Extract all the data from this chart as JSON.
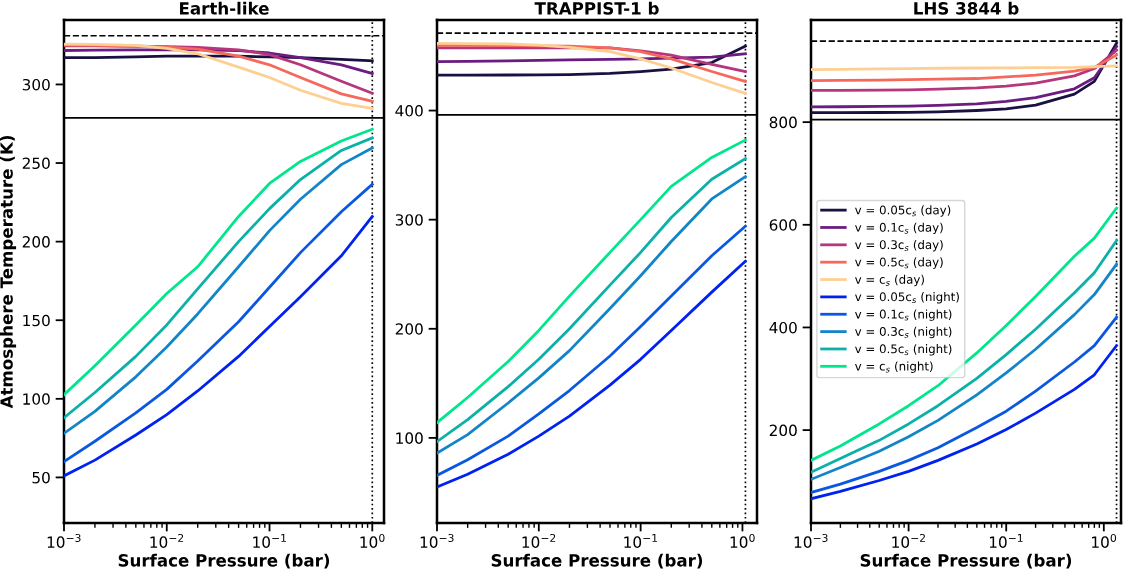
{
  "chart_data": [
    {
      "type": "line",
      "title": "Earth-like",
      "xlabel": "Surface Pressure (bar)",
      "ylabel": "Atmosphere Temperature (K)",
      "log": "x",
      "grid": false,
      "legend": false,
      "xlim": [
        0.001,
        1.3
      ],
      "xticks": [
        {
          "value": 0.001,
          "label": "10$^{−3}$"
        },
        {
          "value": 0.01,
          "label": "10$^{−2}$"
        },
        {
          "value": 0.1,
          "label": "10$^{−1}$"
        },
        {
          "value": 1,
          "label": "10$^{0}$"
        }
      ],
      "ylim": [
        21,
        341
      ],
      "yticks": [
        50,
        100,
        150,
        200,
        250,
        300
      ],
      "x": [
        0.001,
        0.002,
        0.005,
        0.01,
        0.02,
        0.05,
        0.1,
        0.2,
        0.5,
        1
      ],
      "ref_lines": [
        {
          "axis": "y",
          "value": 278.7,
          "color": "#000000",
          "line_style": "solid"
        },
        {
          "axis": "y",
          "value": 331,
          "color": "#000000",
          "line_style": "dashed"
        },
        {
          "axis": "x",
          "value": 1,
          "color": "#000000",
          "line_style": "dotted"
        }
      ],
      "series": [
        {
          "color": "#1a1042",
          "values": [
            317,
            317,
            317.5,
            318,
            318,
            318,
            317.5,
            317,
            316,
            315
          ]
        },
        {
          "color": "#6a1c81",
          "values": [
            321.6,
            321.8,
            322,
            322,
            322,
            321.5,
            320,
            317,
            312.5,
            307
          ]
        },
        {
          "color": "#b5367a",
          "values": [
            324.6,
            324.5,
            324.3,
            324,
            323.5,
            322,
            319,
            312.5,
            302,
            294.4
          ]
        },
        {
          "color": "#f4695c",
          "values": [
            325,
            324.8,
            324.3,
            323.7,
            322.5,
            318,
            312.5,
            304.4,
            294,
            289.3
          ]
        },
        {
          "color": "#fecf92",
          "values": [
            325.7,
            325.5,
            324.8,
            323,
            319.5,
            311,
            304.4,
            296.3,
            288,
            284.7
          ]
        },
        {
          "color": "#0022f0",
          "values": [
            51,
            61,
            77,
            90,
            105,
            127,
            146,
            165,
            191,
            216
          ]
        },
        {
          "color": "#0a58e0",
          "values": [
            60,
            73,
            91,
            106,
            124,
            149,
            171,
            193,
            219,
            236.5
          ]
        },
        {
          "color": "#1285c8",
          "values": [
            78,
            92,
            114,
            133,
            154,
            184,
            207,
            227,
            249,
            259.6
          ]
        },
        {
          "color": "#0bb1a8",
          "values": [
            88,
            104,
            127,
            147,
            170,
            200,
            221,
            239.5,
            258,
            266
          ]
        },
        {
          "color": "#00e68c",
          "values": [
            102.6,
            121,
            147,
            167,
            184,
            216,
            237,
            251,
            264,
            271.5
          ]
        }
      ]
    },
    {
      "type": "line",
      "title": "TRAPPIST-1 b",
      "xlabel": "Surface Pressure (bar)",
      "log": "x",
      "grid": false,
      "legend": false,
      "xlim": [
        0.001,
        1.39
      ],
      "xticks": [
        {
          "value": 0.001,
          "label": "10$^{−3}$"
        },
        {
          "value": 0.01,
          "label": "10$^{−2}$"
        },
        {
          "value": 0.1,
          "label": "10$^{−1}$"
        },
        {
          "value": 1,
          "label": "10$^{0}$"
        }
      ],
      "ylim": [
        22,
        483
      ],
      "yticks": [
        100,
        200,
        300,
        400
      ],
      "x": [
        0.001,
        0.002,
        0.005,
        0.01,
        0.02,
        0.05,
        0.1,
        0.2,
        0.5,
        1.07
      ],
      "ref_lines": [
        {
          "axis": "y",
          "value": 396,
          "color": "#000000",
          "line_style": "solid"
        },
        {
          "axis": "y",
          "value": 471,
          "color": "#000000",
          "line_style": "dashed"
        },
        {
          "axis": "x",
          "value": 1.07,
          "color": "#000000",
          "line_style": "dotted"
        }
      ],
      "series": [
        {
          "color": "#1a1042",
          "values": [
            432.4,
            432.5,
            432.6,
            432.8,
            433,
            434,
            435.7,
            438,
            444,
            459
          ]
        },
        {
          "color": "#6a1c81",
          "values": [
            444.8,
            445,
            445.5,
            446,
            446.5,
            447,
            447.4,
            448,
            449,
            452
          ]
        },
        {
          "color": "#b5367a",
          "values": [
            457.5,
            457.5,
            457.5,
            457.5,
            457.5,
            457.5,
            454.8,
            450.8,
            442.4,
            435.8
          ]
        },
        {
          "color": "#f4695c",
          "values": [
            459.8,
            459.7,
            459.5,
            459.3,
            459,
            457.5,
            454,
            447.4,
            435.8,
            426.7
          ]
        },
        {
          "color": "#fecf92",
          "values": [
            461.5,
            461.3,
            461,
            460,
            458,
            454,
            447.4,
            439,
            425.7,
            415.7
          ]
        },
        {
          "color": "#0022f0",
          "values": [
            55,
            66.6,
            85,
            101.6,
            120,
            148.4,
            172,
            198.5,
            233.6,
            262
          ]
        },
        {
          "color": "#0a58e0",
          "values": [
            65.6,
            80,
            101.6,
            122,
            143.4,
            175,
            202,
            230,
            267,
            294
          ]
        },
        {
          "color": "#1285c8",
          "values": [
            86,
            103,
            132,
            155,
            180,
            218.6,
            248.6,
            280,
            319,
            339.5
          ]
        },
        {
          "color": "#0bb1a8",
          "values": [
            96.6,
            116.7,
            147,
            172,
            200,
            240,
            270,
            302,
            337,
            356
          ]
        },
        {
          "color": "#00e68c",
          "values": [
            114,
            137,
            170,
            198.5,
            230,
            270,
            300,
            330.5,
            357,
            373
          ]
        }
      ]
    },
    {
      "type": "line",
      "title": "LHS 3844 b",
      "xlabel": "Surface Pressure (bar)",
      "log": "x",
      "grid": false,
      "legend": "center left",
      "xlim": [
        0.001,
        1.5
      ],
      "xticks": [
        {
          "value": 0.001,
          "label": "10$^{−3}$"
        },
        {
          "value": 0.01,
          "label": "10$^{−2}$"
        },
        {
          "value": 0.1,
          "label": "10$^{−1}$"
        },
        {
          "value": 1,
          "label": "10$^{0}$"
        }
      ],
      "ylim": [
        19,
        999
      ],
      "yticks": [
        200,
        400,
        600,
        800
      ],
      "x": [
        0.001,
        0.002,
        0.005,
        0.01,
        0.02,
        0.05,
        0.1,
        0.2,
        0.5,
        0.8,
        1.35
      ],
      "ref_lines": [
        {
          "axis": "y",
          "value": 805,
          "color": "#000000",
          "line_style": "solid"
        },
        {
          "axis": "y",
          "value": 958,
          "color": "#000000",
          "line_style": "dashed"
        },
        {
          "axis": "x",
          "value": 1.35,
          "color": "#000000",
          "line_style": "dotted"
        }
      ],
      "series": [
        {
          "name": "v = 0.05c$_{s}$ (day)",
          "color": "#1a1042",
          "values": [
            818.5,
            818.6,
            818.8,
            819,
            820,
            822.7,
            826,
            833,
            854.7,
            879.5,
            954
          ]
        },
        {
          "name": "v = 0.1c$_{s}$ (day)",
          "color": "#6a1c81",
          "values": [
            829.8,
            830,
            830.5,
            831,
            832.5,
            835.5,
            840.5,
            847.6,
            865,
            886.6,
            947
          ]
        },
        {
          "name": "v = 0.3c$_{s}$ (day)",
          "color": "#b5367a",
          "values": [
            861.8,
            862,
            862.5,
            863,
            864.5,
            866.8,
            870,
            876,
            890.2,
            904.4,
            940
          ]
        },
        {
          "name": "v = 0.5c$_{s}$ (day)",
          "color": "#f4695c",
          "values": [
            881,
            881.5,
            882,
            883,
            884,
            885,
            888,
            891.6,
            899.4,
            906.5,
            930.7
          ]
        },
        {
          "name": "v = c$_{s}$ (day)",
          "color": "#fecf92",
          "values": [
            902.3,
            903,
            903.8,
            904.4,
            905,
            905.5,
            905.8,
            906,
            906.5,
            908,
            909.4
          ]
        },
        {
          "name": "v = 0.05c$_{s}$ (night)",
          "color": "#0022f0",
          "values": [
            66.3,
            80.5,
            101.8,
            119.6,
            141,
            172.9,
            201,
            233,
            279.4,
            307.8,
            364.6
          ]
        },
        {
          "name": "v = 0.1c$_{s}$ (night)",
          "color": "#0a58e0",
          "values": [
            78.4,
            94.8,
            119.6,
            141,
            165.8,
            205,
            236.8,
            276,
            332.7,
            364.6,
            420
          ]
        },
        {
          "name": "v = 0.3c$_{s}$ (night)",
          "color": "#1285c8",
          "values": [
            104,
            127,
            158.7,
            187,
            219,
            268.8,
            311.4,
            357.5,
            425,
            464,
            523
          ]
        },
        {
          "name": "v = 0.5c$_{s}$ (night)",
          "color": "#0bb1a8",
          "values": [
            118,
            144.5,
            180,
            212,
            247.5,
            300.7,
            347,
            396.6,
            467.6,
            506.7,
            569
          ]
        },
        {
          "name": "v = c$_{s}$ (night)",
          "color": "#00e68c",
          "values": [
            141,
            169,
            212,
            247.5,
            286.5,
            350.4,
            403.7,
            460.5,
            538.6,
            574,
            632.4
          ]
        }
      ]
    }
  ]
}
